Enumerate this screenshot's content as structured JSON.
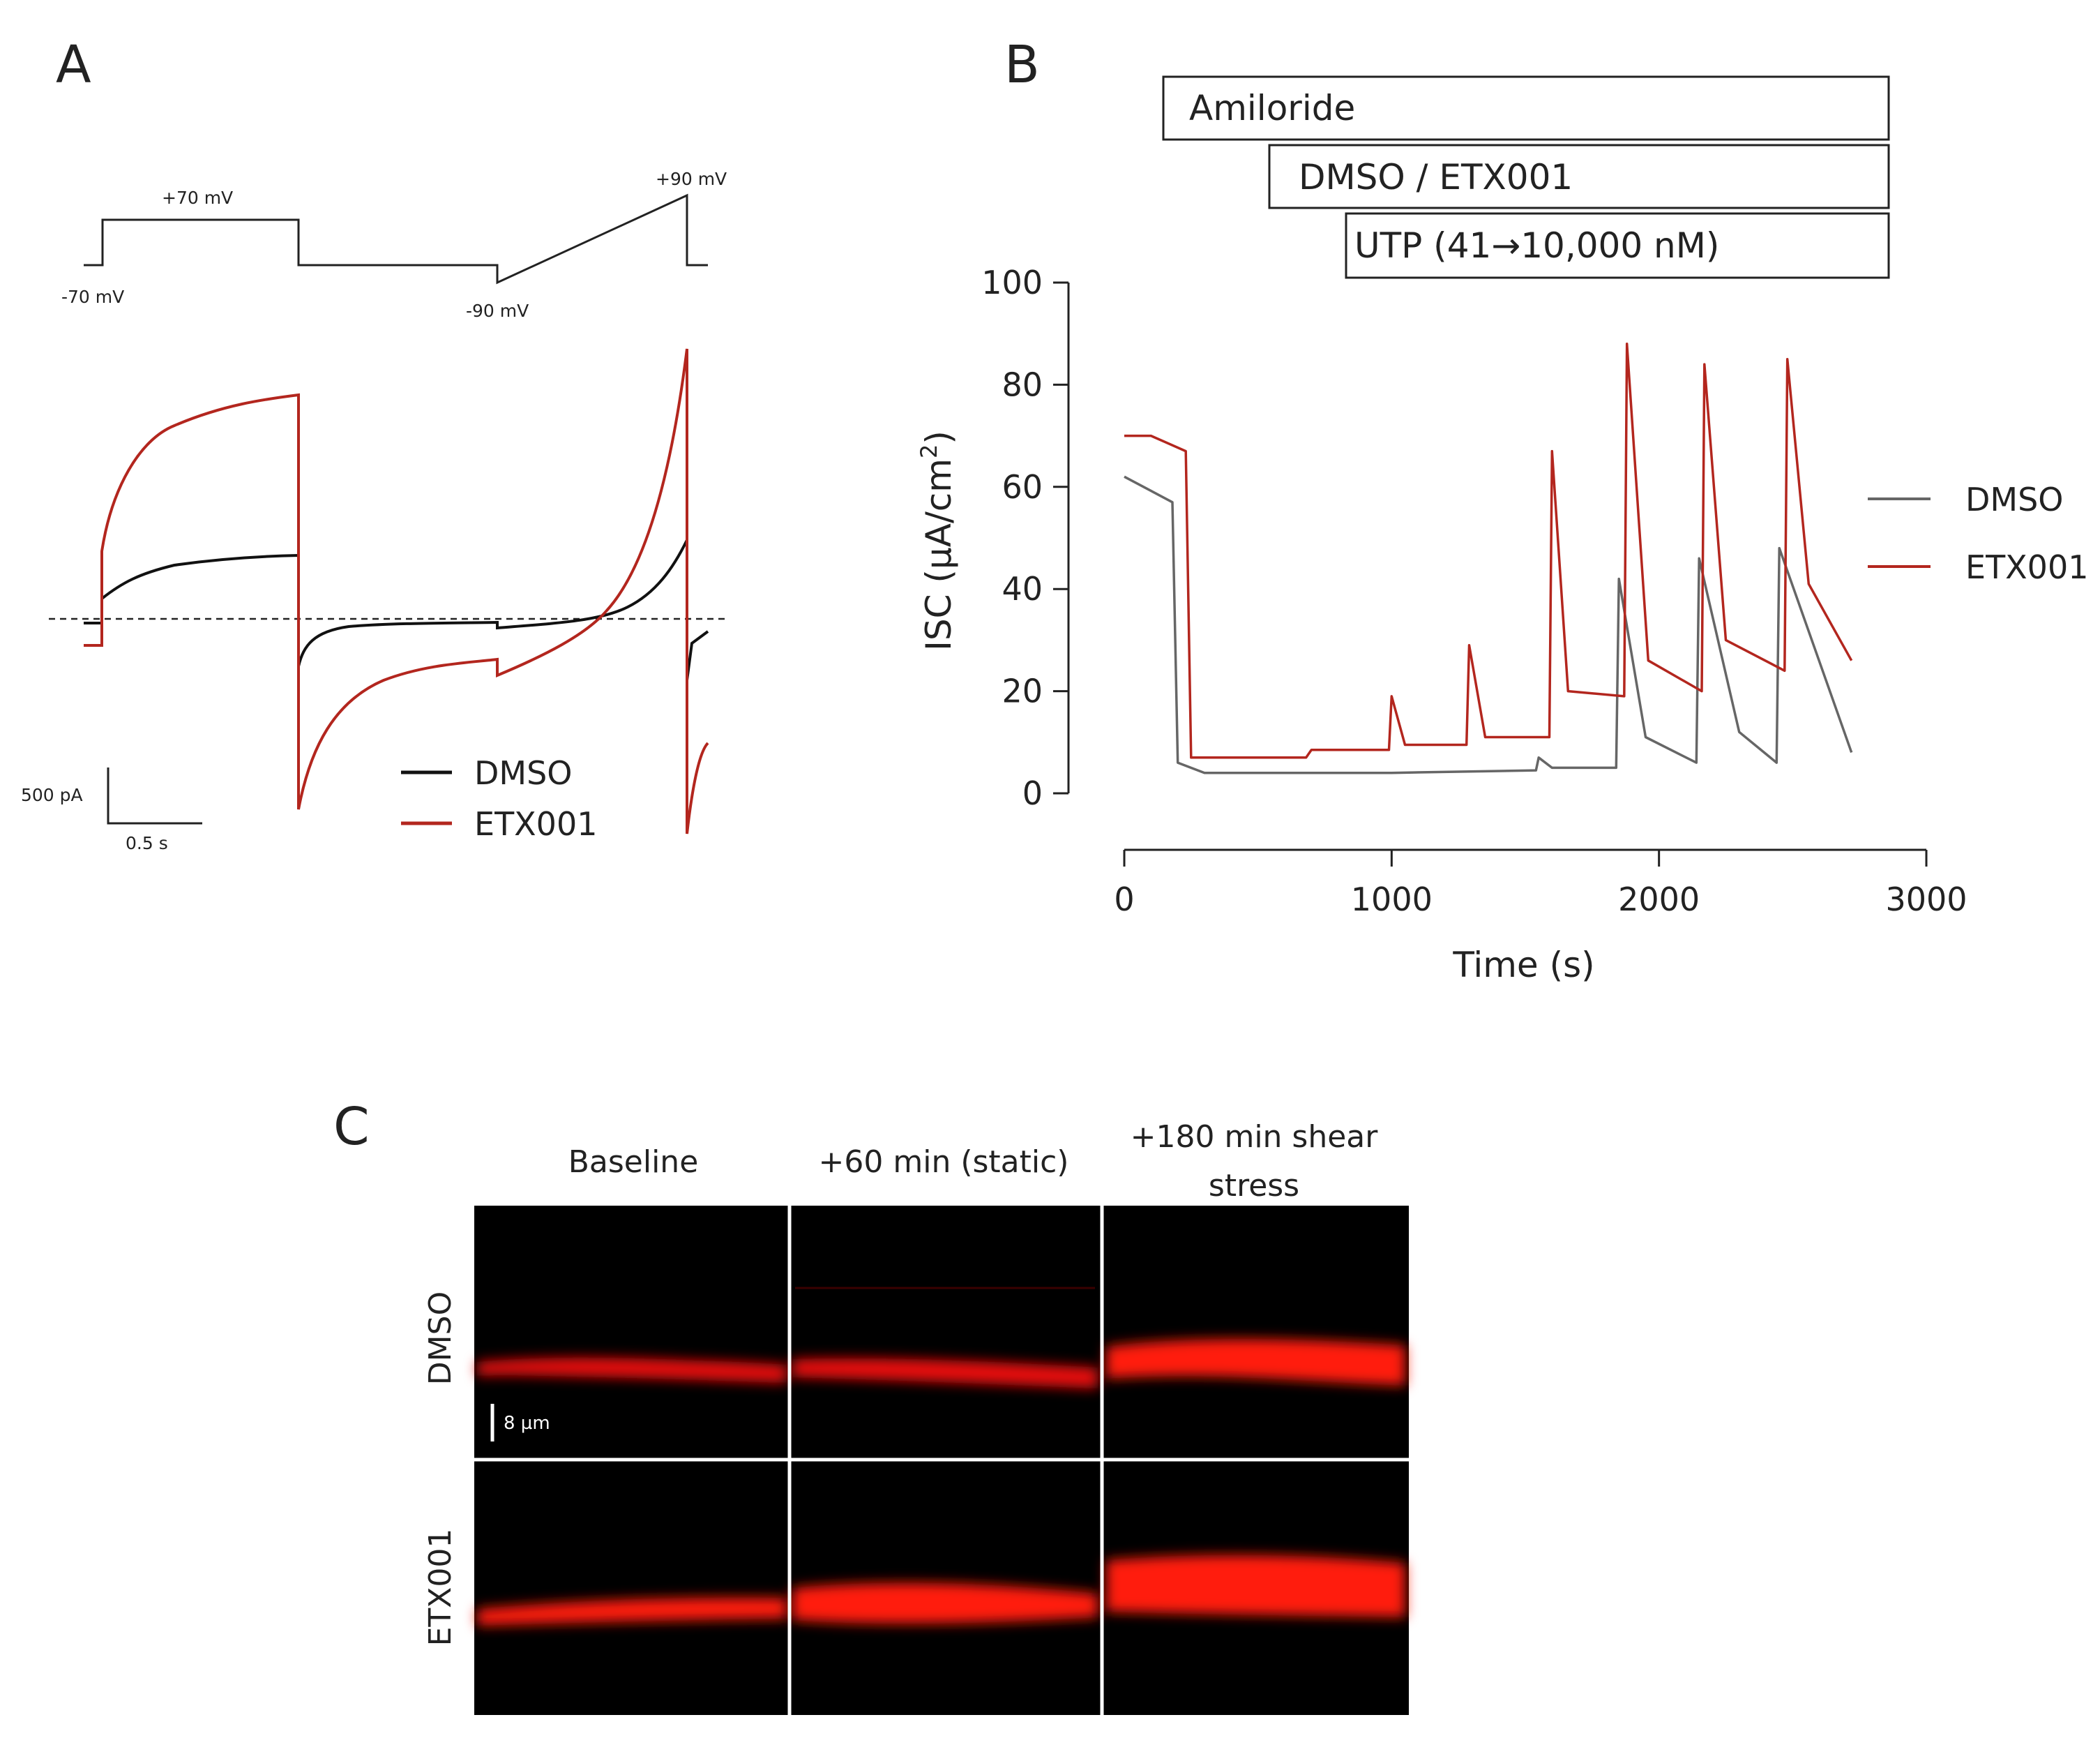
{
  "panels": {
    "a": "A",
    "b": "B",
    "c": "C"
  },
  "protocol": {
    "v1": "+70 mV",
    "v2": "+90 mV",
    "v3": "-70 mV",
    "v4": "-90 mV"
  },
  "scalebar": {
    "current": "500 pA",
    "time": "0.5 s"
  },
  "colors": {
    "dmso_a": "#111111",
    "etx_a": "#b3261e",
    "dmso_b": "#666666",
    "etx_b": "#b3261e"
  },
  "chart_data": [
    {
      "panel": "A",
      "type": "line",
      "title": "",
      "xlabel": "",
      "ylabel": "",
      "legend": [
        "DMSO",
        "ETX001"
      ],
      "series": [
        {
          "name": "DMSO",
          "description": "current response to step/ramp protocol, arbitrary pA units"
        },
        {
          "name": "ETX001",
          "description": "larger outward currents at +70 mV and +90 mV ramp"
        }
      ]
    },
    {
      "panel": "B",
      "type": "line",
      "xlabel": "Time (s)",
      "ylabel": "ISC (µA/cm²)",
      "ylabel_main": "ISC (µA/cm",
      "ylabel_sup": "2",
      "ylabel_close": ")",
      "xlim": [
        0,
        3000
      ],
      "ylim": [
        0,
        100
      ],
      "xticks": [
        "0",
        "1000",
        "2000",
        "3000"
      ],
      "yticks": [
        "0",
        "20",
        "40",
        "60",
        "80",
        "100"
      ],
      "legend": [
        "DMSO",
        "ETX001"
      ],
      "treatments": [
        "Amiloride",
        "DMSO / ETX001",
        "UTP (41→10,000 nM)"
      ],
      "series": [
        {
          "name": "DMSO",
          "x": [
            0,
            180,
            200,
            300,
            1000,
            1540,
            1550,
            1600,
            1840,
            1850,
            1950,
            2140,
            2150,
            2300,
            2440,
            2450,
            2720
          ],
          "y": [
            62,
            57,
            6,
            4,
            4,
            4.5,
            7,
            5,
            5,
            42,
            11,
            6,
            46,
            12,
            6,
            48,
            8
          ]
        },
        {
          "name": "ETX001",
          "x": [
            0,
            100,
            230,
            250,
            680,
            700,
            990,
            1000,
            1050,
            1280,
            1290,
            1350,
            1590,
            1600,
            1660,
            1870,
            1880,
            1960,
            2160,
            2170,
            2250,
            2470,
            2480,
            2560,
            2720
          ],
          "y": [
            70,
            70,
            67,
            7,
            7,
            8.5,
            8.5,
            19,
            9.5,
            9.5,
            29,
            11,
            11,
            67,
            20,
            19,
            88,
            26,
            20,
            84,
            30,
            24,
            85,
            41,
            26
          ]
        }
      ]
    }
  ],
  "panel_c": {
    "columns": [
      "Baseline",
      "+60 min (static)",
      "+180 min shear",
      "stress"
    ],
    "rows": [
      "DMSO",
      "ETX001"
    ],
    "scale": "8 µm"
  }
}
